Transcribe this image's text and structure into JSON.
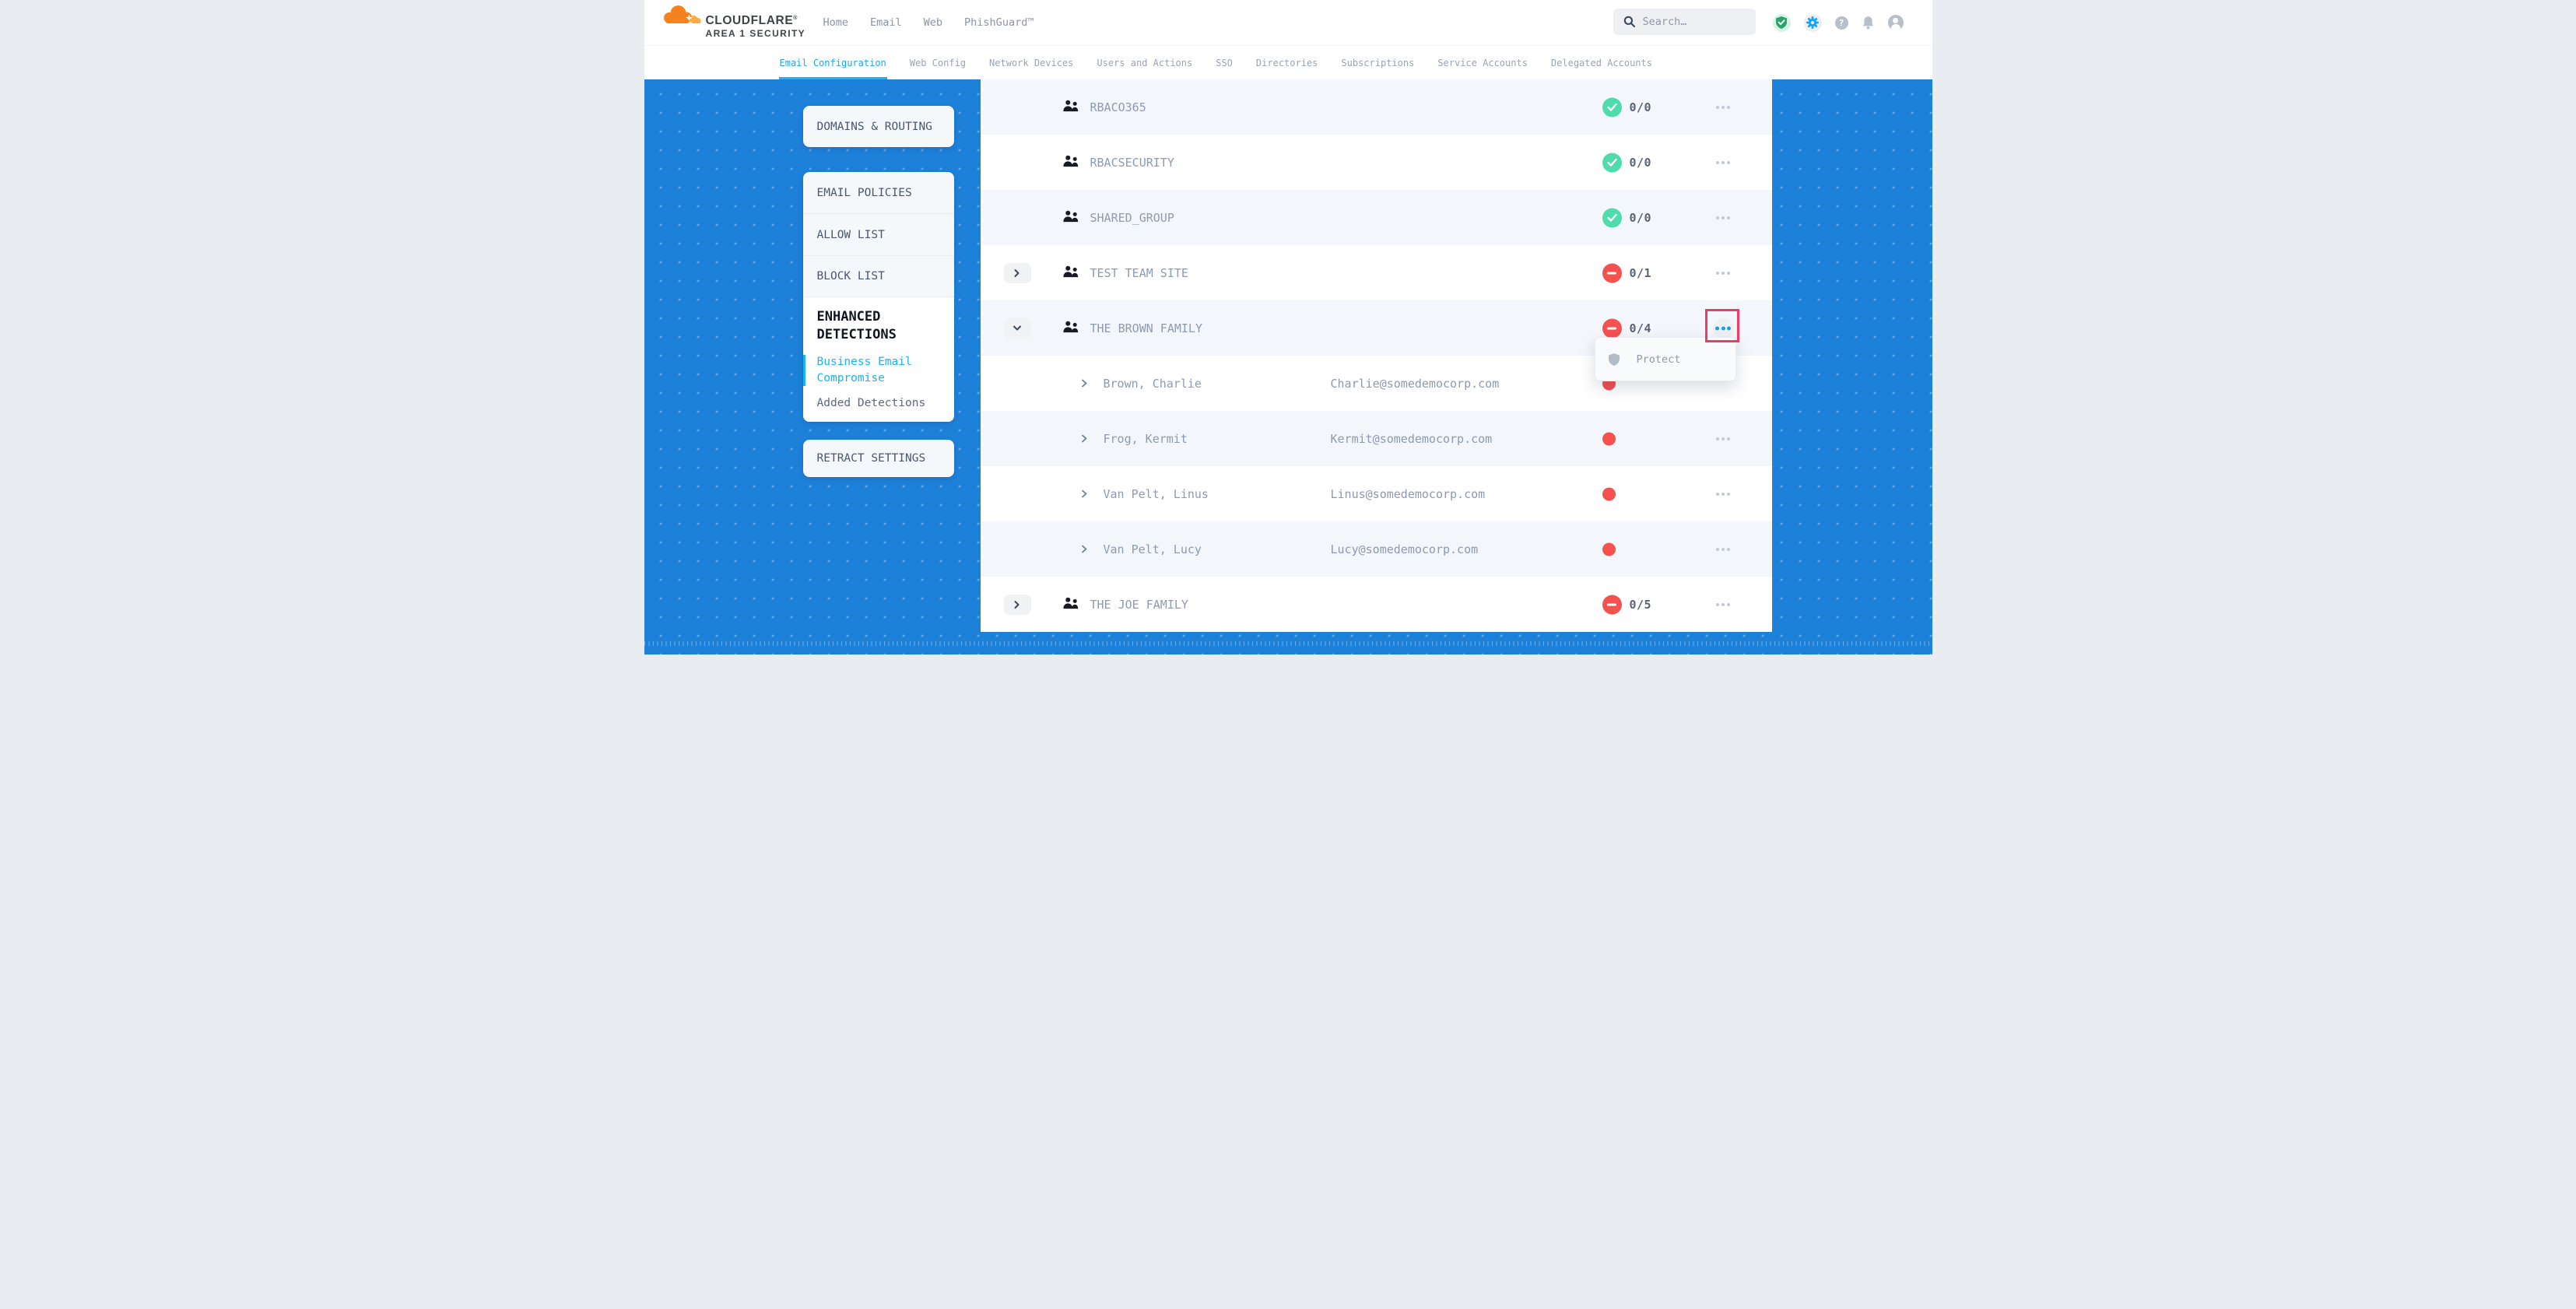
{
  "brand": {
    "name": "CLOUDFLARE",
    "registered": "®",
    "subtitle": "AREA 1 SECURITY"
  },
  "primary_nav": {
    "items": [
      "Home",
      "Email",
      "Web",
      "PhishGuard™"
    ]
  },
  "search": {
    "placeholder": "Search…",
    "value": ""
  },
  "header_actions": [
    {
      "icon": "shield-check-icon",
      "name": "security-status"
    },
    {
      "icon": "gear-icon",
      "name": "settings"
    },
    {
      "icon": "help-icon",
      "name": "help"
    },
    {
      "icon": "bell-icon",
      "name": "notifications"
    },
    {
      "icon": "user-icon",
      "name": "account"
    }
  ],
  "secondary_nav": {
    "items": [
      {
        "label": "Email Configuration",
        "active": true
      },
      {
        "label": "Web Config",
        "active": false
      },
      {
        "label": "Network Devices",
        "active": false
      },
      {
        "label": "Users and Actions",
        "active": false
      },
      {
        "label": "SSO",
        "active": false
      },
      {
        "label": "Directories",
        "active": false
      },
      {
        "label": "Subscriptions",
        "active": false
      },
      {
        "label": "Service Accounts",
        "active": false
      },
      {
        "label": "Delegated Accounts",
        "active": false
      }
    ]
  },
  "sidebar": {
    "cards": [
      {
        "items": [
          {
            "label": "DOMAINS & ROUTING"
          }
        ]
      },
      {
        "items": [
          {
            "label": "EMAIL POLICIES"
          },
          {
            "label": "ALLOW LIST"
          },
          {
            "label": "BLOCK LIST"
          },
          {
            "label": "ENHANCED DETECTIONS",
            "active": true,
            "children": [
              {
                "label": "Business Email Compromise",
                "selected": true
              },
              {
                "label": "Added Detections",
                "selected": false
              }
            ]
          }
        ]
      },
      {
        "items": [
          {
            "label": "RETRACT SETTINGS"
          }
        ]
      }
    ]
  },
  "directory": {
    "rows": [
      {
        "type": "group",
        "name": "RBACO365",
        "count": "0/0",
        "status": "protected",
        "expandable": false
      },
      {
        "type": "group",
        "name": "RBACSECURITY",
        "count": "0/0",
        "status": "protected",
        "expandable": false
      },
      {
        "type": "group",
        "name": "SHARED_GROUP",
        "count": "0/0",
        "status": "protected",
        "expandable": false
      },
      {
        "type": "group",
        "name": "TEST TEAM SITE",
        "count": "0/1",
        "status": "unprotected",
        "expandable": true,
        "expanded": false
      },
      {
        "type": "group",
        "name": "THE BROWN FAMILY",
        "count": "0/4",
        "status": "unprotected",
        "expandable": true,
        "expanded": true,
        "menu_open": true
      },
      {
        "type": "member",
        "name": "Brown, Charlie",
        "email": "Charlie@somedemocorp.com",
        "status": "unprotected",
        "menu_button": false
      },
      {
        "type": "member",
        "name": "Frog, Kermit",
        "email": "Kermit@somedemocorp.com",
        "status": "unprotected",
        "menu_button": true
      },
      {
        "type": "member",
        "name": "Van Pelt, Linus",
        "email": "Linus@somedemocorp.com",
        "status": "unprotected",
        "menu_button": true
      },
      {
        "type": "member",
        "name": "Van Pelt, Lucy",
        "email": "Lucy@somedemocorp.com",
        "status": "unprotected",
        "menu_button": true
      },
      {
        "type": "group",
        "name": "THE JOE FAMILY",
        "count": "0/5",
        "status": "unprotected",
        "expandable": true,
        "expanded": false
      }
    ]
  },
  "context_menu": {
    "items": [
      {
        "icon": "shield-icon",
        "label": "Protect"
      }
    ]
  },
  "colors": {
    "page_blue": "#1e81d9",
    "accent_blue": "#1ba9f3",
    "success_green": "#4fdcab",
    "danger_red": "#f4514f",
    "highlight_pink": "#f43a64"
  }
}
